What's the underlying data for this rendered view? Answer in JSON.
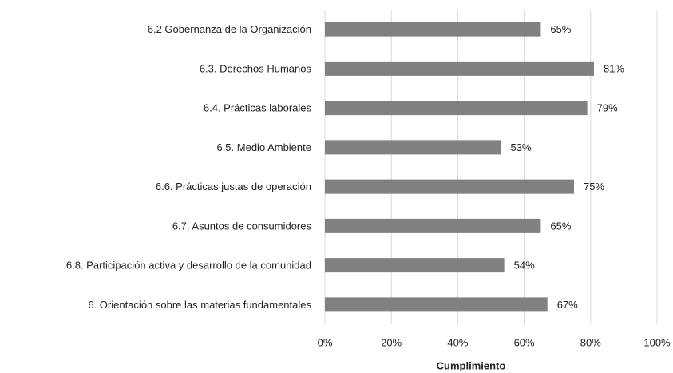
{
  "chart_data": {
    "type": "bar",
    "orientation": "horizontal",
    "categories": [
      "6.2 Gobernanza de la Organización",
      "6.3. Derechos Humanos",
      "6.4. Prácticas laborales",
      "6.5. Medio Ambiente",
      "6.6. Prácticas justas de operación",
      "6.7. Asuntos de consumidores",
      "6.8. Participación activa y desarrollo de la comunidad",
      "6. Orientación sobre las materias fundamentales"
    ],
    "values": [
      65,
      81,
      79,
      53,
      75,
      65,
      54,
      67
    ],
    "value_labels": [
      "65%",
      "81%",
      "79%",
      "53%",
      "75%",
      "65%",
      "54%",
      "67%"
    ],
    "color": "#808080",
    "xlabel": "Cumplimiento",
    "xlim": [
      0,
      100
    ],
    "xticks": [
      {
        "value": 0,
        "label": "0%"
      },
      {
        "value": 20,
        "label": "20%"
      },
      {
        "value": 40,
        "label": "40%"
      },
      {
        "value": 60,
        "label": "60%"
      },
      {
        "value": 80,
        "label": "80%"
      },
      {
        "value": 100,
        "label": "100%"
      }
    ],
    "grid": true
  }
}
